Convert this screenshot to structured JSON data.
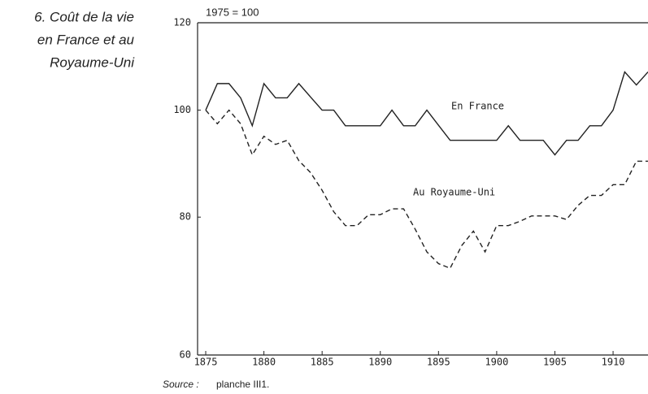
{
  "chart_data": {
    "type": "line",
    "title_lines": [
      "6. Coût de la vie",
      "en France et au",
      "Royaume-Uni"
    ],
    "y_label": "1975 = 100",
    "source_label": "Source :",
    "source_text": "planche III1.",
    "x": [
      1875,
      1876,
      1877,
      1878,
      1879,
      1880,
      1881,
      1882,
      1883,
      1884,
      1885,
      1886,
      1887,
      1888,
      1889,
      1890,
      1891,
      1892,
      1893,
      1894,
      1895,
      1896,
      1897,
      1898,
      1899,
      1900,
      1901,
      1902,
      1903,
      1904,
      1905,
      1906,
      1907,
      1908,
      1909,
      1910,
      1911,
      1912,
      1913
    ],
    "series": [
      {
        "name": "En France",
        "color": "#222222",
        "style": "solid",
        "values": [
          100,
          105.7,
          105.7,
          102.6,
          96.8,
          105.7,
          102.6,
          102.6,
          105.7,
          102.8,
          100,
          100,
          96.8,
          96.8,
          96.8,
          96.8,
          100,
          96.8,
          96.8,
          100,
          96.9,
          93.9,
          93.9,
          93.9,
          93.9,
          93.9,
          96.8,
          93.9,
          93.9,
          93.9,
          91.1,
          93.9,
          93.9,
          96.8,
          96.8,
          100,
          108.3,
          105.4,
          108.3
        ]
      },
      {
        "name": "Au Royaume-Uni",
        "color": "#222222",
        "style": "dashed",
        "values": [
          100,
          97.2,
          100,
          97.2,
          91.1,
          94.7,
          93.1,
          93.9,
          90.0,
          87.8,
          84.6,
          80.9,
          78.6,
          78.6,
          80.4,
          80.4,
          81.4,
          81.4,
          78.0,
          74.4,
          72.6,
          71.9,
          75.4,
          77.7,
          74.4,
          78.6,
          78.6,
          79.3,
          80.2,
          80.2,
          80.2,
          79.6,
          82.0,
          83.7,
          83.7,
          85.6,
          85.6,
          89.9,
          89.9
        ]
      }
    ],
    "xlim": [
      1874.3,
      1913
    ],
    "xticks": [
      1875,
      1880,
      1885,
      1890,
      1895,
      1900,
      1905,
      1910
    ],
    "ylim": [
      60,
      120
    ],
    "yticks": [
      60,
      80,
      100,
      120
    ],
    "log_y": true,
    "grid": false
  }
}
